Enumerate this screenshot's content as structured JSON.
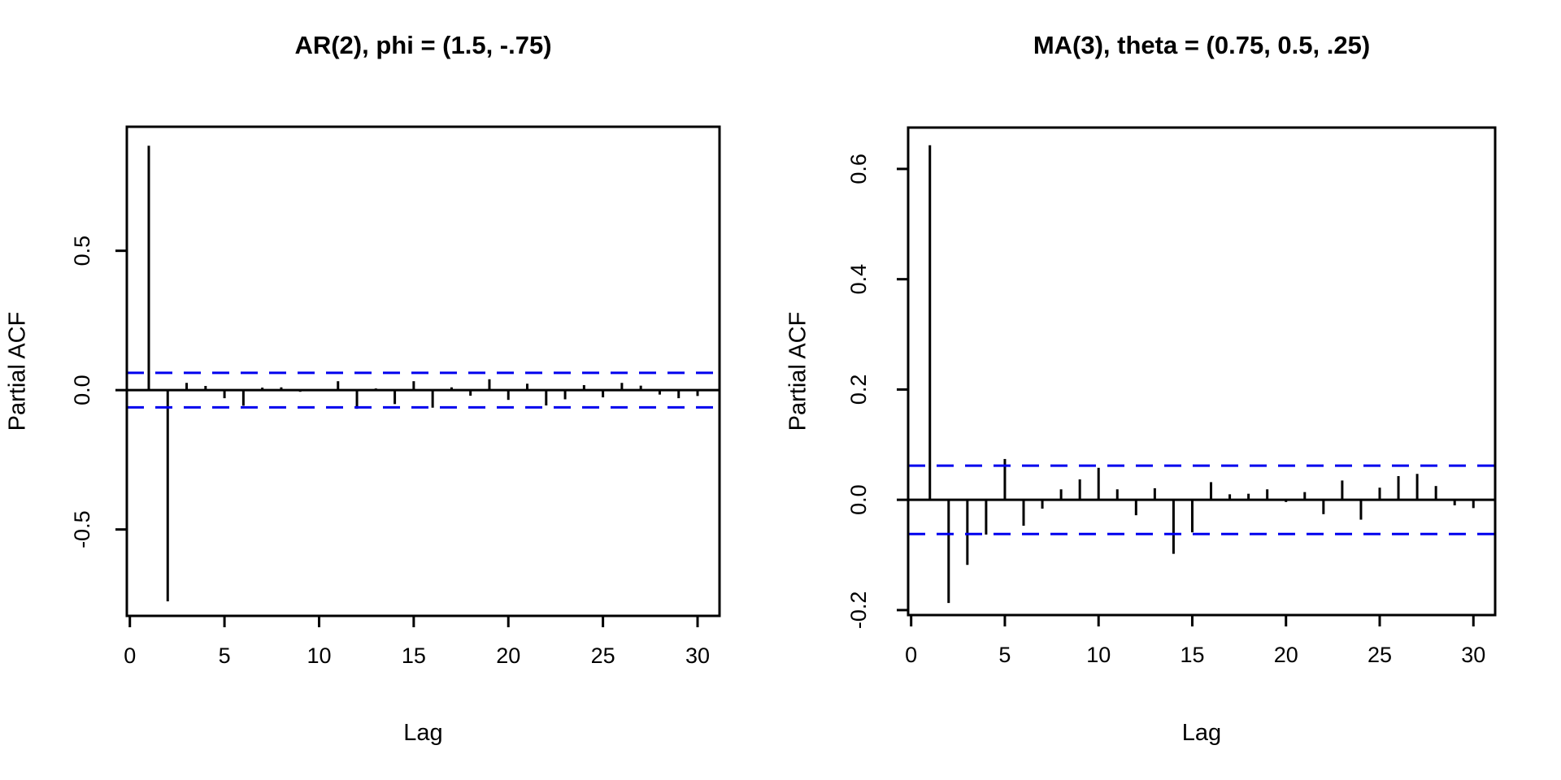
{
  "page": {
    "background": "#ffffff",
    "axis_color": "#000000",
    "conf_band_color": "#0000EE"
  },
  "chart_data": [
    {
      "type": "bar",
      "subtype": "pacf-spike-plot",
      "title": "AR(2), phi = (1.5, -.75)",
      "xlabel": "Lag",
      "ylabel": "Partial ACF",
      "x": [
        1,
        2,
        3,
        4,
        5,
        6,
        7,
        8,
        9,
        10,
        11,
        12,
        13,
        14,
        15,
        16,
        17,
        18,
        19,
        20,
        21,
        22,
        23,
        24,
        25,
        26,
        27,
        28,
        29,
        30
      ],
      "values": [
        0.877,
        -0.758,
        0.026,
        0.015,
        -0.029,
        -0.056,
        0.009,
        0.01,
        -0.006,
        -0.003,
        0.032,
        -0.067,
        0.006,
        -0.05,
        0.032,
        -0.063,
        0.01,
        -0.02,
        0.039,
        -0.035,
        0.023,
        -0.055,
        -0.033,
        0.018,
        -0.026,
        0.026,
        0.016,
        -0.016,
        -0.029,
        -0.021
      ],
      "xticks": [
        0,
        5,
        10,
        15,
        20,
        25,
        30
      ],
      "xtick_labels": [
        "0",
        "5",
        "10",
        "15",
        "20",
        "25",
        "30"
      ],
      "yticks": [
        -0.5,
        0.0,
        0.5
      ],
      "ytick_labels": [
        "-0.5",
        "0.0",
        "0.5"
      ],
      "xlim": [
        -0.16,
        31.16
      ],
      "ylim": [
        -0.81,
        0.945
      ],
      "baseline": 0,
      "conf_band": 0.062,
      "conf_band_style": "dashed",
      "conf_band_color": "#0000EE",
      "bar_color": "#000000",
      "grid": false,
      "legend": "none"
    },
    {
      "type": "bar",
      "subtype": "pacf-spike-plot",
      "title": "MA(3), theta = (0.75, 0.5, .25)",
      "xlabel": "Lag",
      "ylabel": "Partial ACF",
      "x": [
        1,
        2,
        3,
        4,
        5,
        6,
        7,
        8,
        9,
        10,
        11,
        12,
        13,
        14,
        15,
        16,
        17,
        18,
        19,
        20,
        21,
        22,
        23,
        24,
        25,
        26,
        27,
        28,
        29,
        30
      ],
      "values": [
        0.643,
        -0.187,
        -0.118,
        -0.063,
        0.074,
        -0.047,
        -0.016,
        0.019,
        0.037,
        0.058,
        0.019,
        -0.028,
        0.021,
        -0.098,
        -0.059,
        0.032,
        0.01,
        0.011,
        0.019,
        -0.004,
        0.014,
        -0.026,
        0.035,
        -0.036,
        0.022,
        0.043,
        0.047,
        0.025,
        -0.01,
        -0.015
      ],
      "xticks": [
        0,
        5,
        10,
        15,
        20,
        25,
        30
      ],
      "xtick_labels": [
        "0",
        "5",
        "10",
        "15",
        "20",
        "25",
        "30"
      ],
      "yticks": [
        -0.2,
        0.0,
        0.2,
        0.4,
        0.6
      ],
      "ytick_labels": [
        "-0.2",
        "0.0",
        "0.2",
        "0.4",
        "0.6"
      ],
      "xlim": [
        -0.16,
        31.16
      ],
      "ylim": [
        -0.209,
        0.675
      ],
      "baseline": 0,
      "conf_band": 0.062,
      "conf_band_style": "dashed",
      "conf_band_color": "#0000EE",
      "bar_color": "#000000",
      "grid": false,
      "legend": "none"
    }
  ]
}
